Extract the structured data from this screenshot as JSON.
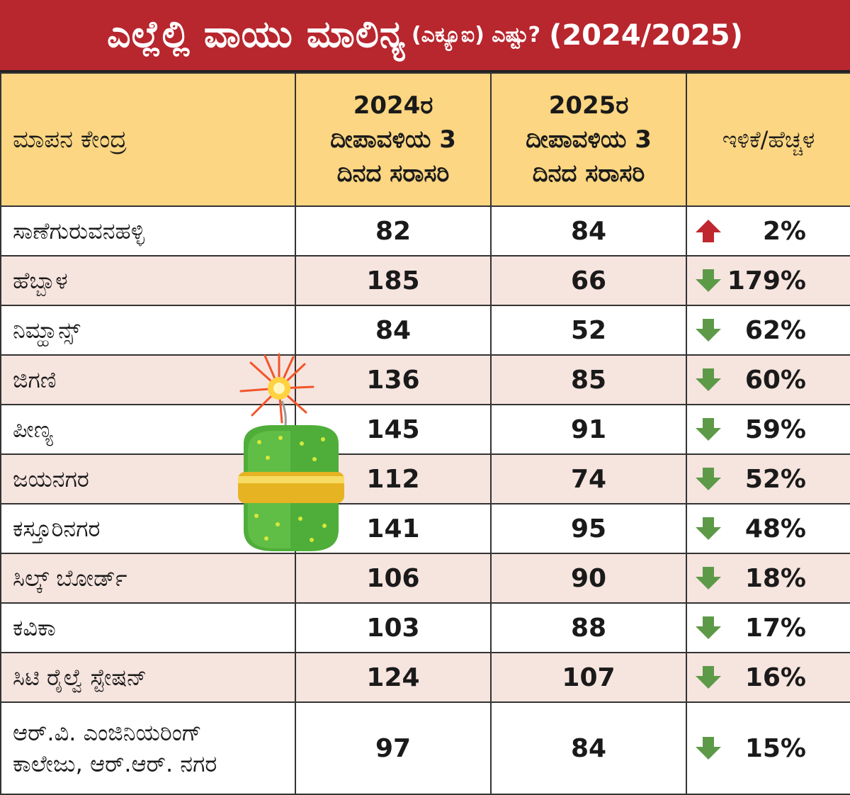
{
  "title": {
    "main": "ಎಲ್ಲೆಲ್ಲಿ ವಾಯು ಮಾಲಿನ್ಯ",
    "sub": "(ಎಕ್ಯೂಐ) ಎಷ್ಟು?",
    "year": "(2024/2025)"
  },
  "colors": {
    "title_bg": "#b8262e",
    "header_bg": "#fcd682",
    "alt_row_bg": "#f6e4df",
    "up_arrow": "#c0262e",
    "down_arrow": "#5d9a48"
  },
  "table": {
    "headers": {
      "station": "ಮಾಪನ ಕೇಂದ್ರ",
      "y2024_line1": "2024ರ",
      "y2024_line2": "ದೀಪಾವಳಿಯ 3",
      "y2024_line3": "ದಿನದ ಸರಾಸರಿ",
      "y2025_line1": "2025ರ",
      "y2025_line2": "ದೀಪಾವಳಿಯ 3",
      "y2025_line3": "ದಿನದ ಸರಾಸರಿ",
      "change": "ಇಳಿಕೆ/ಹೆಚ್ಚಳ"
    }
  },
  "chart_data": {
    "type": "table",
    "title": "ಎಲ್ಲೆಲ್ಲಿ ವಾಯು ಮಾಲಿನ್ಯ (ಎಕ್ಯೂಐ) ಎಷ್ಟು? (2024/2025)",
    "columns": [
      "ಮಾಪನ ಕೇಂದ್ರ",
      "2024ರ ದೀಪಾವಳಿಯ 3 ದಿನದ ಸರಾಸರಿ",
      "2025ರ ದೀಪಾವಳಿಯ 3 ದಿನದ ಸರಾಸರಿ",
      "ಇಳಿಕೆ/ಹೆಚ್ಚಳ"
    ],
    "rows": [
      {
        "station": "ಸಾಣೆಗುರುವನಹಳ್ಳಿ",
        "aqi_2024": "82",
        "aqi_2025": "84",
        "direction": "up",
        "change": "2%"
      },
      {
        "station": "ಹೆಬ್ಬಾಳ",
        "aqi_2024": "185",
        "aqi_2025": "66",
        "direction": "down",
        "change": "179%"
      },
      {
        "station": "ನಿಮ್ಹಾನ್ಸ್",
        "aqi_2024": "84",
        "aqi_2025": "52",
        "direction": "down",
        "change": "62%"
      },
      {
        "station": "ಜಿಗಣಿ",
        "aqi_2024": "136",
        "aqi_2025": "85",
        "direction": "down",
        "change": "60%"
      },
      {
        "station": "ಪೀಣ್ಯ",
        "aqi_2024": "145",
        "aqi_2025": "91",
        "direction": "down",
        "change": "59%"
      },
      {
        "station": "ಜಯನಗರ",
        "aqi_2024": "112",
        "aqi_2025": "74",
        "direction": "down",
        "change": "52%"
      },
      {
        "station": "ಕಸ್ತೂರಿನಗರ",
        "aqi_2024": "141",
        "aqi_2025": "95",
        "direction": "down",
        "change": "48%"
      },
      {
        "station": "ಸಿಲ್ಕ್ ಬೋರ್ಡ್",
        "aqi_2024": "106",
        "aqi_2025": "90",
        "direction": "down",
        "change": "18%"
      },
      {
        "station": "ಕವಿಕಾ",
        "aqi_2024": "103",
        "aqi_2025": "88",
        "direction": "down",
        "change": "17%"
      },
      {
        "station": "ಸಿಟಿ ರೈಲ್ವೆ ಸ್ಟೇಷನ್",
        "aqi_2024": "124",
        "aqi_2025": "107",
        "direction": "down",
        "change": "16%"
      },
      {
        "station": "ಆರ್.ವಿ. ಎಂಜಿನಿಯರಿಂಗ್ ಕಾಲೇಜು, ಆರ್.ಆರ್. ನಗರ",
        "station_line1": "ಆರ್.ವಿ. ಎಂಜಿನಿಯರಿಂಗ್",
        "station_line2": "ಕಾಲೇಜು, ಆರ್.ಆರ್. ನಗರ",
        "aqi_2024": "97",
        "aqi_2025": "84",
        "direction": "down",
        "change": "15%"
      }
    ]
  }
}
